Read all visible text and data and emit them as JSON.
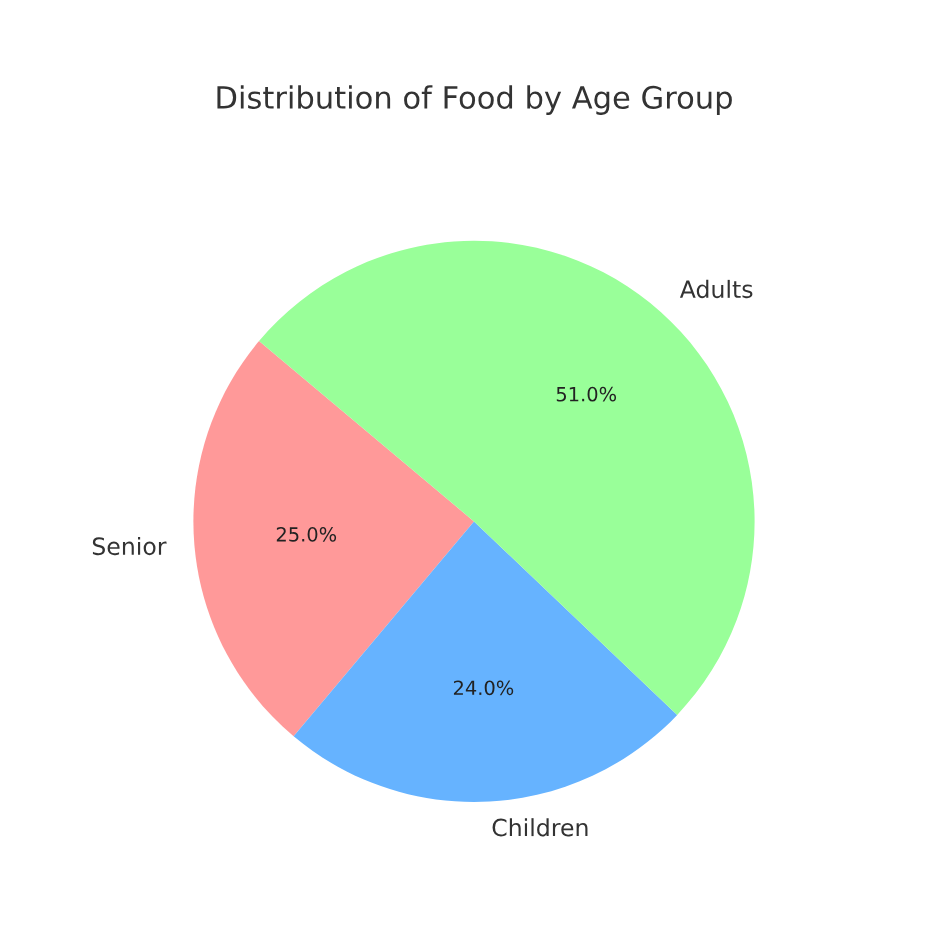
{
  "chart_data": {
    "type": "pie",
    "title": "Distribution of Food by Age Group",
    "categories": [
      "Senior",
      "Children",
      "Adults"
    ],
    "values": [
      25.0,
      24.0,
      51.0
    ],
    "colors": [
      "#ff9999",
      "#66b3ff",
      "#99ff99"
    ],
    "value_labels": [
      "25.0%",
      "24.0%",
      "51.0%"
    ],
    "legend": false
  }
}
